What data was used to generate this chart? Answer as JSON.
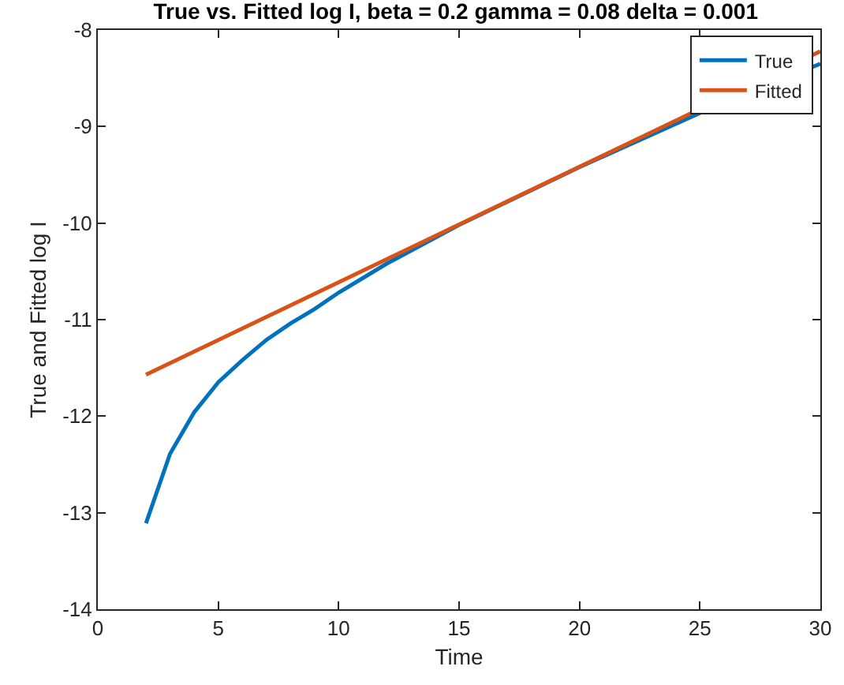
{
  "chart_data": {
    "type": "line",
    "title": "True vs. Fitted log I, beta = 0.2 gamma = 0.08 delta = 0.001",
    "xlabel": "Time",
    "ylabel": "True and Fitted log I",
    "xlim": [
      0,
      30
    ],
    "xticks": [
      0,
      5,
      10,
      15,
      20,
      25,
      30
    ],
    "ylim": [
      -14,
      -8
    ],
    "yticks": [
      -14,
      -13,
      -12,
      -11,
      -10,
      -9,
      -8
    ],
    "grid": false,
    "legend": "top right",
    "marker": "none",
    "line_style": "solid",
    "series": [
      {
        "name": "True",
        "color": "#0072bd",
        "x": [
          2,
          3,
          4,
          5,
          6,
          7,
          8,
          9,
          10,
          12,
          15,
          20,
          25,
          30
        ],
        "values": [
          -13.11,
          -12.39,
          -11.96,
          -11.65,
          -11.42,
          -11.21,
          -11.04,
          -10.89,
          -10.72,
          -10.42,
          -10.02,
          -9.42,
          -8.86,
          -8.35
        ]
      },
      {
        "name": "Fitted",
        "color": "#d95319",
        "x": [
          2,
          30
        ],
        "values": [
          -11.57,
          -8.22
        ]
      }
    ]
  }
}
